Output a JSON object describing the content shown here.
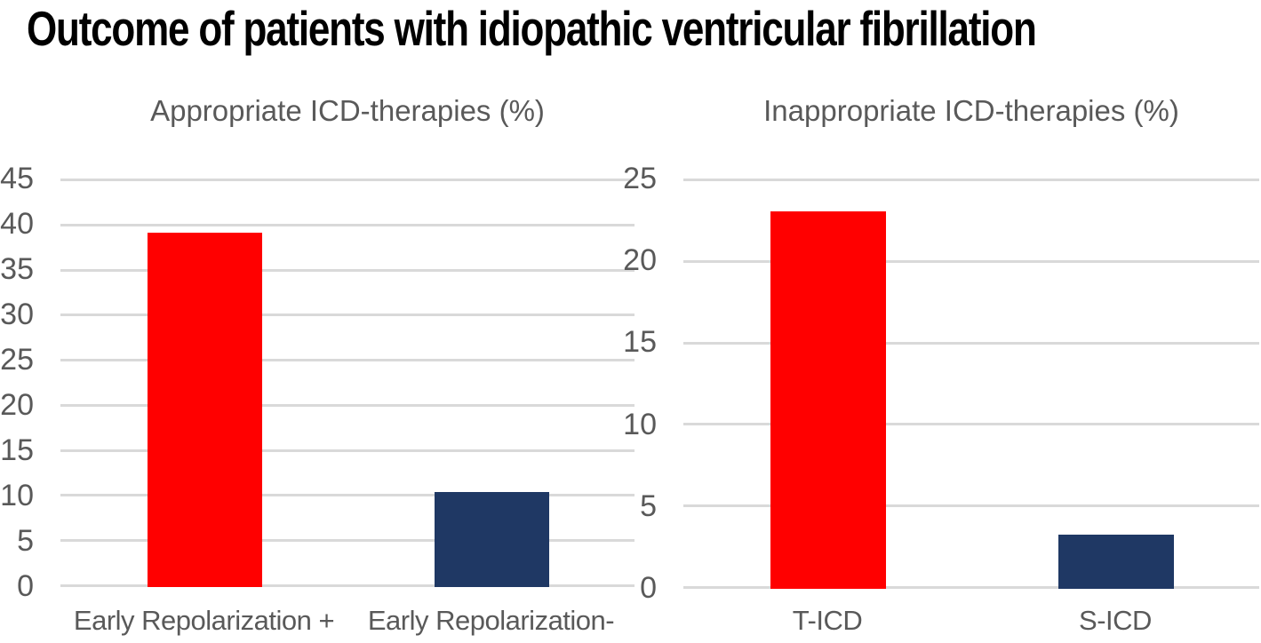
{
  "page_title": "Outcome of patients with idiopathic ventricular fibrillation",
  "colors": {
    "background": "#FFFFFF",
    "main_title": "#000000",
    "axis_label": "#595959",
    "gridline": "#D9D9D9",
    "bar_red": "#FF0000",
    "bar_navy": "#1F3864"
  },
  "chart_data": [
    {
      "type": "bar",
      "title": "Appropriate ICD-therapies (%)",
      "categories": [
        "Early Repolarization +",
        "Early Repolarization-"
      ],
      "values": [
        39,
        10.5
      ],
      "bar_colors": [
        "#FF0000",
        "#1F3864"
      ],
      "xlabel": "",
      "ylabel": "",
      "ylim": [
        0,
        45
      ],
      "ytick_step": 5,
      "yticks": [
        45,
        40,
        35,
        30,
        25,
        20,
        15,
        10,
        5,
        0
      ],
      "grid": true,
      "legend_position": "none"
    },
    {
      "type": "bar",
      "title": "Inappropriate ICD-therapies (%)",
      "categories": [
        "T-ICD",
        "S-ICD"
      ],
      "values": [
        23,
        3.3
      ],
      "bar_colors": [
        "#FF0000",
        "#1F3864"
      ],
      "xlabel": "",
      "ylabel": "",
      "ylim": [
        0,
        25
      ],
      "ytick_step": 5,
      "yticks": [
        25,
        20,
        15,
        10,
        5,
        0
      ],
      "grid": true,
      "legend_position": "none"
    }
  ]
}
